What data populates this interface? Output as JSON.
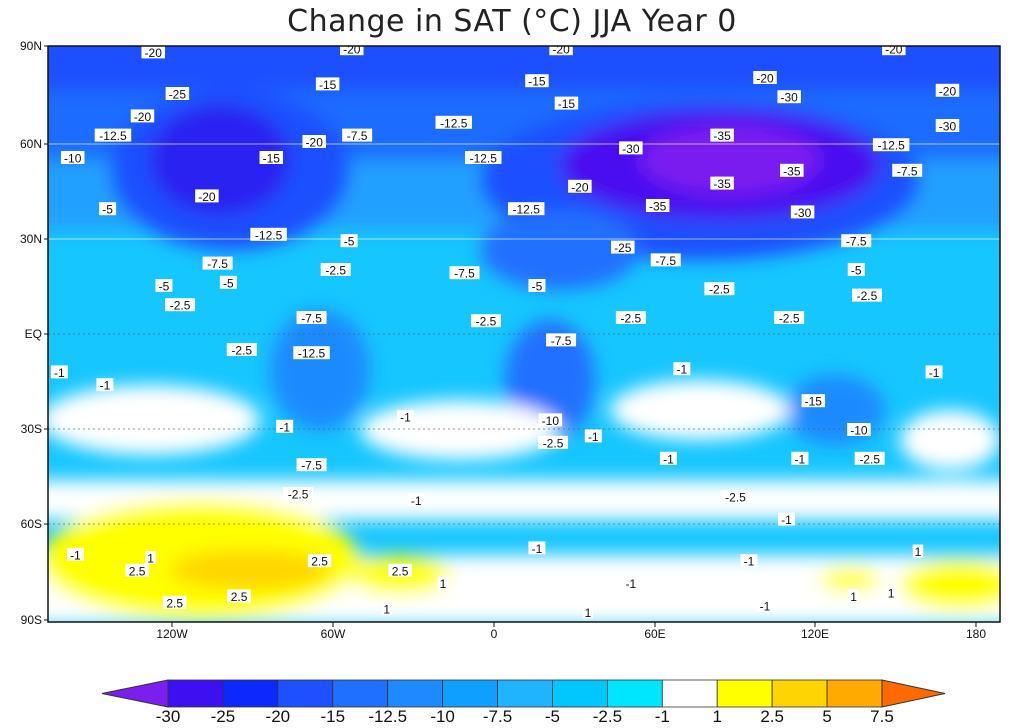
{
  "title": "Change in SAT (°C) JJA Year 0",
  "lat_ticks": [
    "90N",
    "60N",
    "30N",
    "EQ",
    "30S",
    "60S",
    "90S"
  ],
  "lon_ticks": [
    "120W",
    "60W",
    "0",
    "60E",
    "120E",
    "180"
  ],
  "colorbar": {
    "levels": [
      "-30",
      "-25",
      "-20",
      "-15",
      "-12.5",
      "-10",
      "-7.5",
      "-5",
      "-2.5",
      "-1",
      "1",
      "2.5",
      "5",
      "7.5"
    ],
    "colors": [
      "#7a1ff0",
      "#3c10f0",
      "#0a28ff",
      "#1e50ff",
      "#2070ff",
      "#1f8aff",
      "#0fa0ff",
      "#20b4ff",
      "#00c8ff",
      "#00e6ff",
      "#ffffff",
      "#ffff00",
      "#ffd500",
      "#ffaa00",
      "#ff6a00"
    ]
  },
  "contour_labels": [
    {
      "v": "-20",
      "lon": -127,
      "lat": 88
    },
    {
      "v": "-20",
      "lon": -53,
      "lat": 89
    },
    {
      "v": "-20",
      "lon": 25,
      "lat": 89
    },
    {
      "v": "-20",
      "lon": 149,
      "lat": 89
    },
    {
      "v": "-25",
      "lon": -118,
      "lat": 75
    },
    {
      "v": "-20",
      "lon": -131,
      "lat": 68
    },
    {
      "v": "-12.5",
      "lon": -142,
      "lat": 62
    },
    {
      "v": "-10",
      "lon": -157,
      "lat": 55
    },
    {
      "v": "-15",
      "lon": -62,
      "lat": 78
    },
    {
      "v": "-7.5",
      "lon": -51,
      "lat": 62
    },
    {
      "v": "-20",
      "lon": -67,
      "lat": 60
    },
    {
      "v": "-15",
      "lon": -83,
      "lat": 55
    },
    {
      "v": "-20",
      "lon": -107,
      "lat": 43
    },
    {
      "v": "-5",
      "lon": -144,
      "lat": 39
    },
    {
      "v": "-12.5",
      "lon": -84,
      "lat": 31
    },
    {
      "v": "-5",
      "lon": -54,
      "lat": 29
    },
    {
      "v": "-7.5",
      "lon": -103,
      "lat": 22
    },
    {
      "v": "-2.5",
      "lon": -59,
      "lat": 20
    },
    {
      "v": "-5",
      "lon": -99,
      "lat": 16
    },
    {
      "v": "-5",
      "lon": -123,
      "lat": 15
    },
    {
      "v": "-2.5",
      "lon": -117,
      "lat": 9
    },
    {
      "v": "-7.5",
      "lon": -68,
      "lat": 5
    },
    {
      "v": "-12.5",
      "lon": -68,
      "lat": -6
    },
    {
      "v": "-2.5",
      "lon": -94,
      "lat": -5
    },
    {
      "v": "-1",
      "lon": -162,
      "lat": -12
    },
    {
      "v": "-1",
      "lon": -78,
      "lat": -29
    },
    {
      "v": "-1",
      "lon": -33,
      "lat": -26
    },
    {
      "v": "-7.5",
      "lon": -68,
      "lat": -41
    },
    {
      "v": "-2.5",
      "lon": -73,
      "lat": -50
    },
    {
      "v": "-12.5",
      "lon": -15,
      "lat": 66
    },
    {
      "v": "-12.5",
      "lon": -4,
      "lat": 55
    },
    {
      "v": "-15",
      "lon": 16,
      "lat": 79
    },
    {
      "v": "-15",
      "lon": 27,
      "lat": 72
    },
    {
      "v": "-20",
      "lon": 32,
      "lat": 46
    },
    {
      "v": "-12.5",
      "lon": 12,
      "lat": 39
    },
    {
      "v": "-7.5",
      "lon": -11,
      "lat": 19
    },
    {
      "v": "-5",
      "lon": 16,
      "lat": 15
    },
    {
      "v": "-2.5",
      "lon": -3,
      "lat": 4
    },
    {
      "v": "-7.5",
      "lon": 25,
      "lat": -2
    },
    {
      "v": "-10",
      "lon": 21,
      "lat": -27
    },
    {
      "v": "-2.5",
      "lon": 22,
      "lat": -34
    },
    {
      "v": "-1",
      "lon": 37,
      "lat": -32
    },
    {
      "v": "-30",
      "lon": 51,
      "lat": 58
    },
    {
      "v": "-35",
      "lon": 85,
      "lat": 62
    },
    {
      "v": "-35",
      "lon": 85,
      "lat": 47
    },
    {
      "v": "-35",
      "lon": 111,
      "lat": 51
    },
    {
      "v": "-35",
      "lon": 61,
      "lat": 40
    },
    {
      "v": "-30",
      "lon": 115,
      "lat": 38
    },
    {
      "v": "-20",
      "lon": 101,
      "lat": 80
    },
    {
      "v": "-30",
      "lon": 110,
      "lat": 74
    },
    {
      "v": "-20",
      "lon": 169,
      "lat": 76
    },
    {
      "v": "-30",
      "lon": 169,
      "lat": 65
    },
    {
      "v": "-12.5",
      "lon": 148,
      "lat": 59
    },
    {
      "v": "-7.5",
      "lon": 154,
      "lat": 51
    },
    {
      "v": "-7.5",
      "lon": 135,
      "lat": 29
    },
    {
      "v": "-5",
      "lon": 135,
      "lat": 20
    },
    {
      "v": "-2.5",
      "lon": 139,
      "lat": 12
    },
    {
      "v": "-25",
      "lon": 48,
      "lat": 27
    },
    {
      "v": "-7.5",
      "lon": 64,
      "lat": 23
    },
    {
      "v": "-2.5",
      "lon": 84,
      "lat": 14
    },
    {
      "v": "-2.5",
      "lon": 51,
      "lat": 5
    },
    {
      "v": "-2.5",
      "lon": 110,
      "lat": 5
    },
    {
      "v": "-1",
      "lon": 70,
      "lat": -11
    },
    {
      "v": "-15",
      "lon": 119,
      "lat": -21
    },
    {
      "v": "-10",
      "lon": 136,
      "lat": -30
    },
    {
      "v": "-2.5",
      "lon": 140,
      "lat": -39
    },
    {
      "v": "-1",
      "lon": 164,
      "lat": -12
    },
    {
      "v": "-1",
      "lon": 114,
      "lat": -39
    },
    {
      "v": "-1",
      "lon": 65,
      "lat": -39
    },
    {
      "v": "-2.5",
      "lon": 90,
      "lat": -51
    },
    {
      "v": "-1",
      "lon": 109,
      "lat": -58
    },
    {
      "v": "-1",
      "lon": -29,
      "lat": -52
    },
    {
      "v": "-1",
      "lon": 16,
      "lat": -67
    },
    {
      "v": "-1",
      "lon": 51,
      "lat": -78
    },
    {
      "v": "-1",
      "lon": 95,
      "lat": -71
    },
    {
      "v": "1",
      "lon": 158,
      "lat": -68
    },
    {
      "v": "1",
      "lon": -128,
      "lat": -70
    },
    {
      "v": "2.5",
      "lon": -133,
      "lat": -74
    },
    {
      "v": "2.5",
      "lon": -65,
      "lat": -71
    },
    {
      "v": "2.5",
      "lon": -35,
      "lat": -74
    },
    {
      "v": "2.5",
      "lon": -119,
      "lat": -84
    },
    {
      "v": "2.5",
      "lon": -95,
      "lat": -82
    },
    {
      "v": "-1",
      "lon": -156,
      "lat": -69
    },
    {
      "v": "1",
      "lon": -40,
      "lat": -86
    },
    {
      "v": "1",
      "lon": 35,
      "lat": -87
    },
    {
      "v": "1",
      "lon": 134,
      "lat": -82
    },
    {
      "v": "1",
      "lon": 148,
      "lat": -81
    },
    {
      "v": "-1",
      "lon": 101,
      "lat": -85
    },
    {
      "v": "1",
      "lon": -19,
      "lat": -78
    },
    {
      "v": "-1",
      "lon": -145,
      "lat": -16
    }
  ]
}
